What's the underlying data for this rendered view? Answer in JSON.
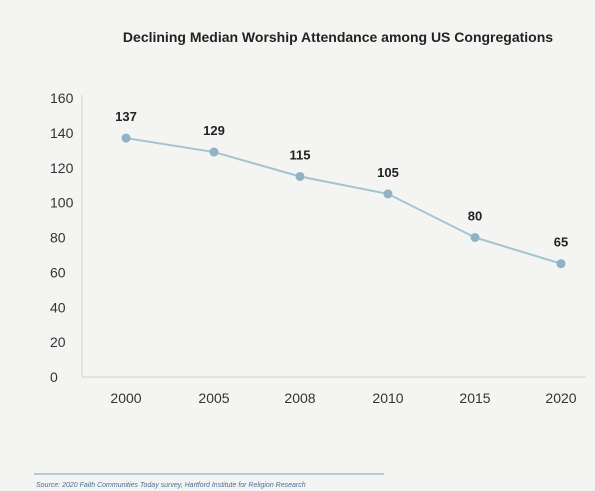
{
  "chart_data": {
    "type": "line",
    "title": "Declining Median Worship Attendance among US Congregations",
    "categories": [
      "2000",
      "2005",
      "2008",
      "2010",
      "2015",
      "2020"
    ],
    "series": [
      {
        "values": [
          137,
          129,
          115,
          105,
          80,
          65
        ],
        "data_labels": [
          "137",
          "129",
          "115",
          "105",
          "80",
          "65"
        ]
      }
    ],
    "yticks": [
      "0",
      "20",
      "40",
      "60",
      "80",
      "100",
      "120",
      "140",
      "160"
    ],
    "ylim": [
      0,
      160
    ],
    "xlabel": "",
    "ylabel": "",
    "grid": false,
    "colors": {
      "line": "#a4c4d0",
      "marker": "#8fb3c3",
      "source": "#4a6f98",
      "background": "#f4f4f2"
    }
  },
  "source": "Source: 2020 Faith Communities Today survey, Hartford Institute for Religion Research"
}
